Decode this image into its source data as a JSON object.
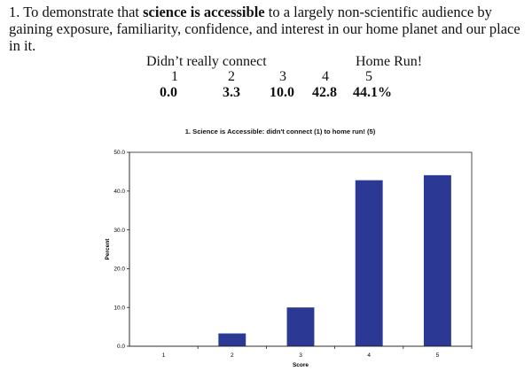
{
  "intro": {
    "lead": "1. To demonstrate that ",
    "bold": "science is accessible",
    "rest": " to a largely non-scientific audience by gaining exposure, familiarity, confidence, and interest in our home planet and our place in it."
  },
  "scale": {
    "left_label": "Didn’t really connect",
    "right_label": "Home Run!",
    "scores": [
      "1",
      "2",
      "3",
      "4",
      "5"
    ],
    "percents": [
      "0.0",
      "3.3",
      "10.0",
      "42.8",
      "44.1%"
    ]
  },
  "chart_data": {
    "type": "bar",
    "title": "1. Science is Accessible: didn't connect (1) to home run! (5)",
    "xlabel": "Score",
    "ylabel": "Percent",
    "categories": [
      "1",
      "2",
      "3",
      "4",
      "5"
    ],
    "values": [
      0.0,
      3.3,
      10.0,
      42.8,
      44.1
    ],
    "ylim": [
      0,
      50
    ],
    "yticks": [
      "0.0",
      "10.0",
      "20.0",
      "30.0",
      "40.0",
      "50.0"
    ],
    "bar_color": "#2b3894",
    "grid": false,
    "legend": "none"
  }
}
